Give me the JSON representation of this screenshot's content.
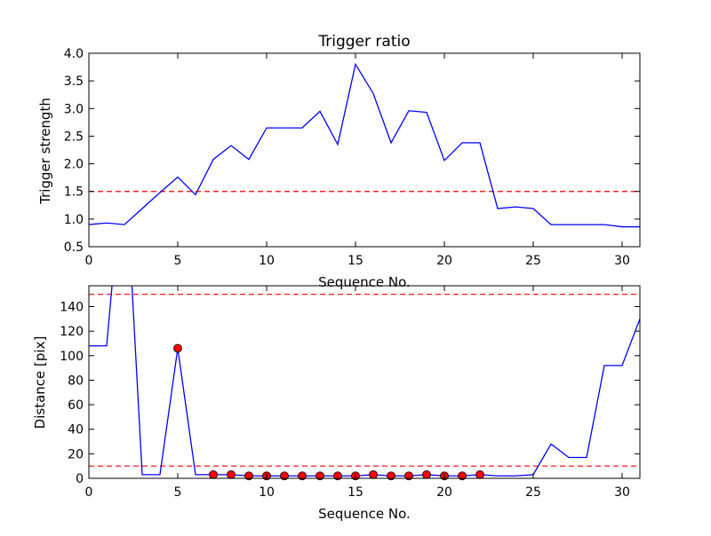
{
  "chart_data": [
    {
      "type": "line",
      "title": "Trigger ratio",
      "xlabel": "Sequence No.",
      "ylabel": "Trigger strength",
      "xlim": [
        0,
        31
      ],
      "ylim": [
        0.5,
        4.0
      ],
      "xticks": [
        "0",
        "5",
        "10",
        "15",
        "20",
        "25",
        "30"
      ],
      "yticks": [
        "0.5",
        "1.0",
        "1.5",
        "2.0",
        "2.5",
        "3.0",
        "3.5",
        "4.0"
      ],
      "grid": false,
      "series": [
        {
          "color": "#0000ff",
          "x": [
            0,
            1,
            2,
            3,
            4,
            5,
            6,
            7,
            8,
            9,
            10,
            11,
            12,
            13,
            14,
            15,
            16,
            17,
            18,
            19,
            20,
            21,
            22,
            23,
            24,
            25,
            26,
            27,
            28,
            29,
            30,
            31
          ],
          "values": [
            0.9,
            0.93,
            0.9,
            1.19,
            1.48,
            1.76,
            1.44,
            2.08,
            2.33,
            2.08,
            2.65,
            2.65,
            2.65,
            2.95,
            2.35,
            3.8,
            3.27,
            2.38,
            2.96,
            2.93,
            2.06,
            2.38,
            2.38,
            1.19,
            1.22,
            1.19,
            0.9,
            0.9,
            0.9,
            0.9,
            0.86,
            0.86
          ]
        }
      ],
      "threshold_lines": [
        {
          "y": 1.5,
          "color": "#ff0000",
          "style": "dashed"
        }
      ]
    },
    {
      "type": "line",
      "title": "",
      "xlabel": "Sequence No.",
      "ylabel": "Distance [pix]",
      "xlim": [
        0,
        31
      ],
      "ylim": [
        0,
        157
      ],
      "xticks": [
        "0",
        "5",
        "10",
        "15",
        "20",
        "25",
        "30"
      ],
      "yticks": [
        "0",
        "20",
        "40",
        "60",
        "80",
        "100",
        "120",
        "140"
      ],
      "grid": false,
      "series": [
        {
          "color": "#0000ff",
          "x": [
            0,
            1,
            2,
            3,
            4,
            5,
            6,
            7,
            8,
            9,
            10,
            11,
            12,
            13,
            14,
            15,
            16,
            17,
            18,
            19,
            20,
            21,
            22,
            23,
            24,
            25,
            26,
            27,
            28,
            29,
            30,
            31
          ],
          "values": [
            108,
            108,
            270,
            3,
            3,
            106,
            3,
            3,
            3,
            2,
            2,
            2,
            2,
            2,
            2,
            2,
            3,
            2,
            2,
            3,
            2,
            2,
            3,
            2,
            2,
            3,
            28,
            17,
            17,
            92,
            92,
            130
          ]
        }
      ],
      "markers": {
        "color": "#ff0000",
        "x": [
          5,
          7,
          8,
          9,
          10,
          11,
          12,
          13,
          14,
          15,
          16,
          17,
          18,
          19,
          20,
          21,
          22
        ],
        "values": [
          106,
          3,
          3,
          2,
          2,
          2,
          2,
          2,
          2,
          2,
          3,
          2,
          2,
          3,
          2,
          2,
          3
        ]
      },
      "threshold_lines": [
        {
          "y": 150,
          "color": "#ff0000",
          "style": "dashed"
        },
        {
          "y": 10,
          "color": "#ff0000",
          "style": "dashed"
        }
      ]
    }
  ]
}
